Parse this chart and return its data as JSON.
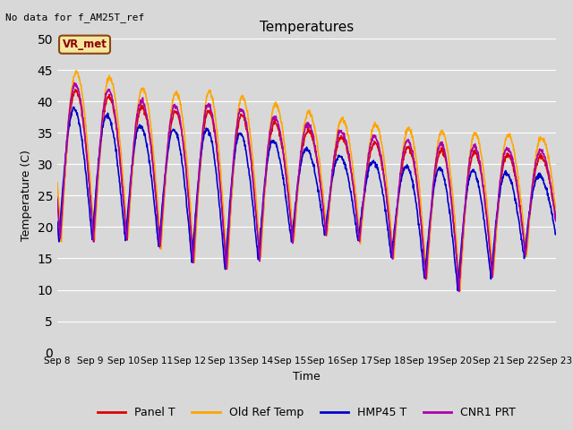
{
  "title": "Temperatures",
  "xlabel": "Time",
  "ylabel": "Temperature (C)",
  "ylim": [
    0,
    50
  ],
  "yticks": [
    0,
    5,
    10,
    15,
    20,
    25,
    30,
    35,
    40,
    45,
    50
  ],
  "plot_bg_color": "#d8d8d8",
  "annotation_text": "No data for f_AM25T_ref",
  "legend_box_text": "VR_met",
  "series": [
    {
      "label": "Panel T",
      "color": "#dd0000",
      "lw": 1.2
    },
    {
      "label": "Old Ref Temp",
      "color": "#ffa500",
      "lw": 1.2
    },
    {
      "label": "HMP45 T",
      "color": "#0000cc",
      "lw": 1.2
    },
    {
      "label": "CNR1 PRT",
      "color": "#aa00aa",
      "lw": 1.2
    }
  ],
  "tick_labels": [
    "Sep 8",
    "Sep 9",
    "Sep 10",
    "Sep 11",
    "Sep 12",
    "Sep 13",
    "Sep 14",
    "Sep 15",
    "Sep 16",
    "Sep 17",
    "Sep 18",
    "Sep 19",
    "Sep 20",
    "Sep 21",
    "Sep 22",
    "Sep 23"
  ]
}
